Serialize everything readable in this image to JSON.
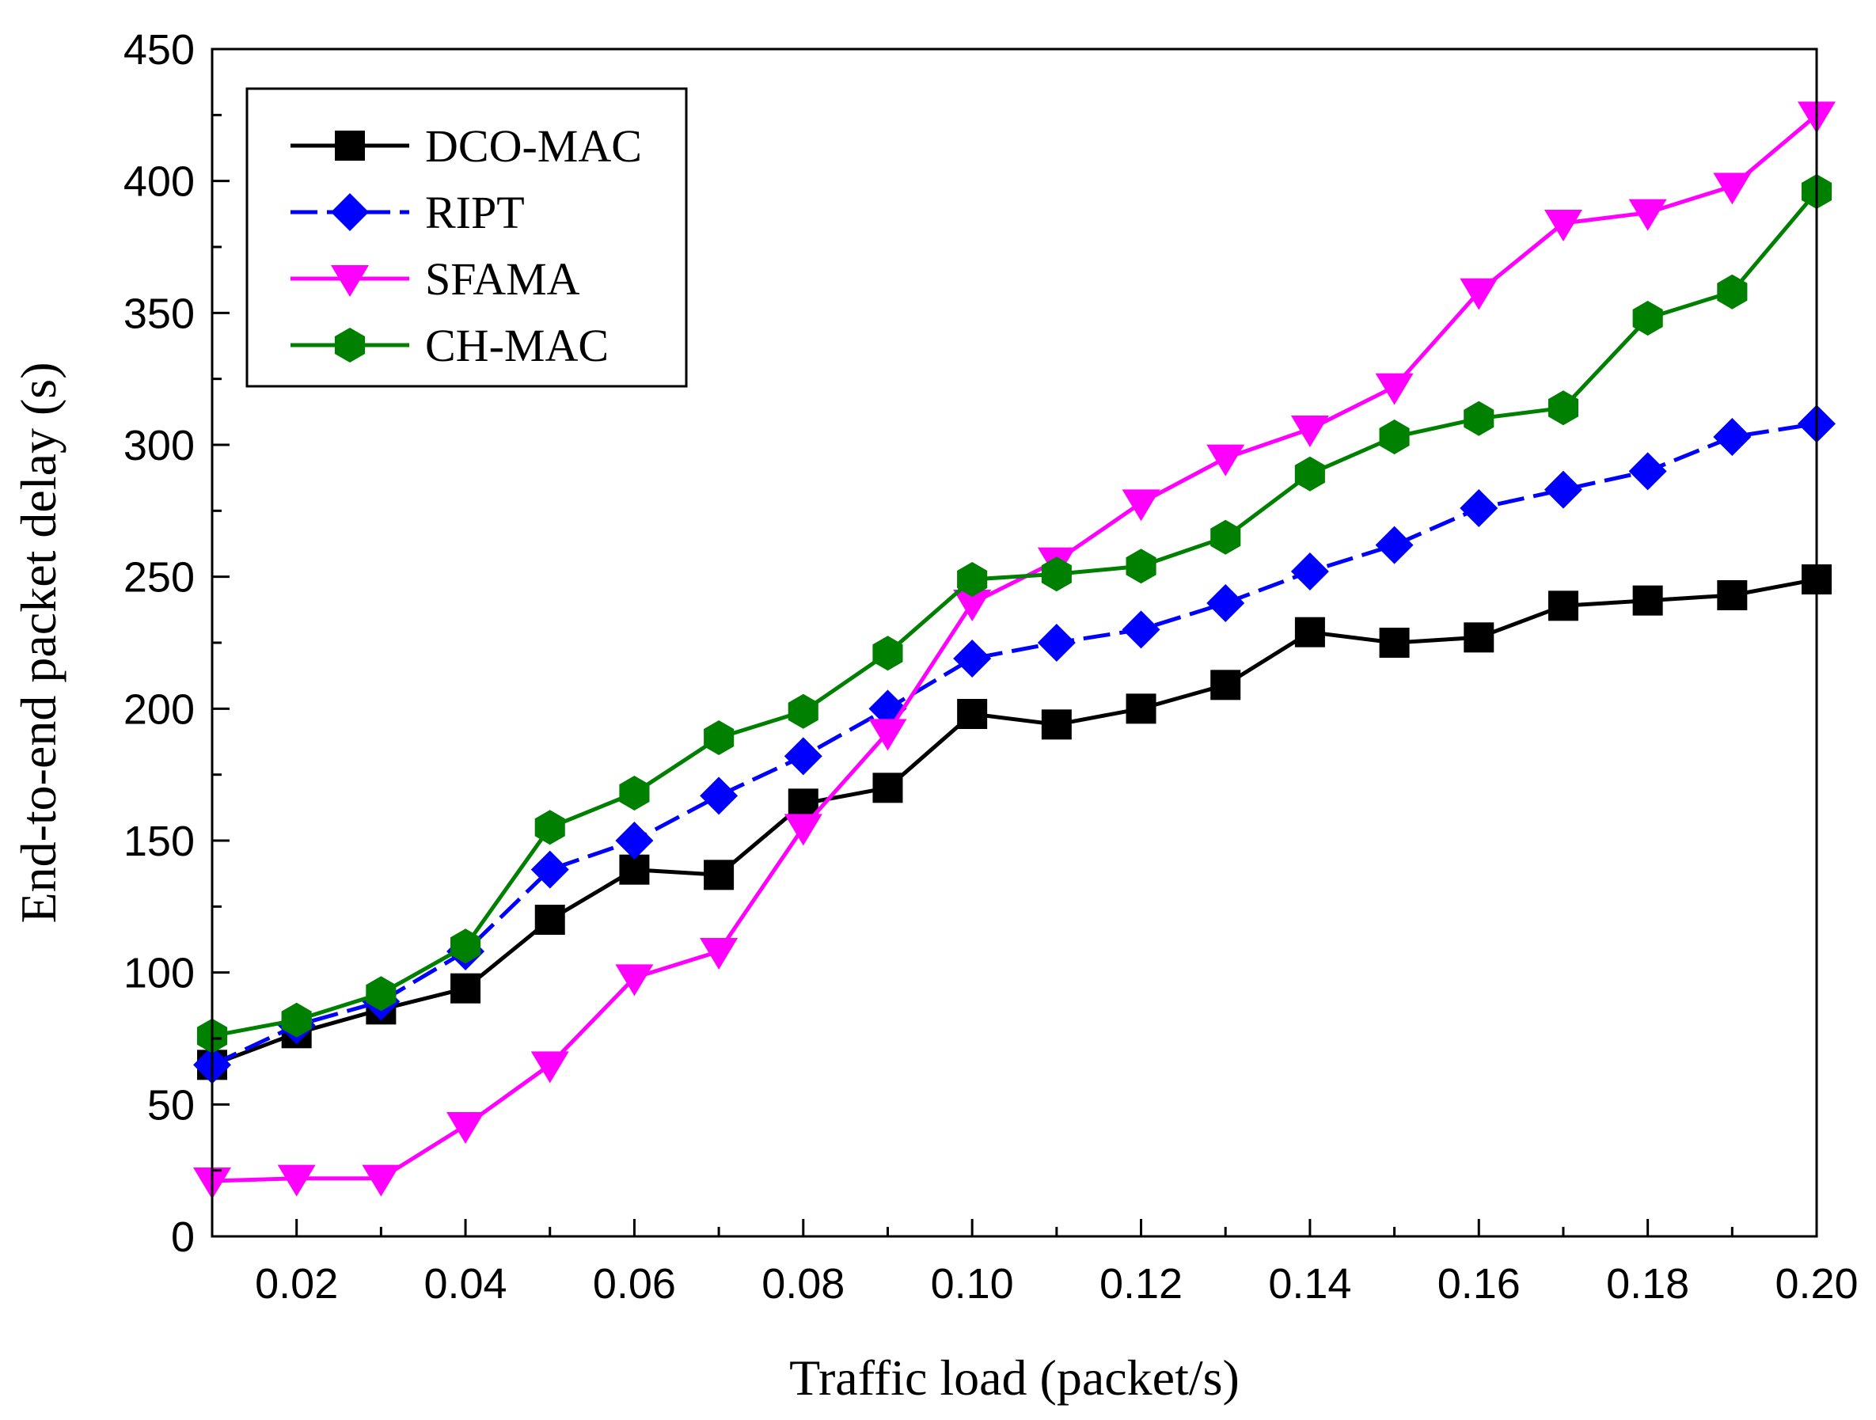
{
  "chart_data": {
    "type": "line",
    "title": "",
    "xlabel": "Traffic load (packet/s)",
    "ylabel": "End-to-end packet delay (s)",
    "xlim": [
      0.01,
      0.2
    ],
    "ylim": [
      0,
      450
    ],
    "xticks": [
      "0.02",
      "0.04",
      "0.06",
      "0.08",
      "0.10",
      "0.12",
      "0.14",
      "0.16",
      "0.18",
      "0.20"
    ],
    "xtick_values": [
      0.02,
      0.04,
      0.06,
      0.08,
      0.1,
      0.12,
      0.14,
      0.16,
      0.18,
      0.2
    ],
    "yticks": [
      "0",
      "50",
      "100",
      "150",
      "200",
      "250",
      "300",
      "350",
      "400",
      "450"
    ],
    "ytick_values": [
      0,
      50,
      100,
      150,
      200,
      250,
      300,
      350,
      400,
      450
    ],
    "legend_position": "top-left",
    "x": [
      0.01,
      0.02,
      0.03,
      0.04,
      0.05,
      0.06,
      0.07,
      0.08,
      0.09,
      0.1,
      0.11,
      0.12,
      0.13,
      0.14,
      0.15,
      0.16,
      0.17,
      0.18,
      0.19,
      0.2
    ],
    "series": [
      {
        "name": "DCO-MAC",
        "color": "#000000",
        "marker": "square",
        "dashed": false,
        "values": [
          65,
          77,
          86,
          94,
          120,
          139,
          137,
          164,
          170,
          198,
          194,
          200,
          209,
          229,
          225,
          227,
          239,
          241,
          243,
          249
        ]
      },
      {
        "name": "RIPT",
        "color": "#0000ff",
        "marker": "diamond",
        "dashed": true,
        "values": [
          65,
          80,
          89,
          108,
          139,
          150,
          167,
          182,
          200,
          219,
          225,
          230,
          240,
          252,
          262,
          276,
          283,
          290,
          303,
          308
        ]
      },
      {
        "name": "SFAMA",
        "color": "#ff00ff",
        "marker": "triangle-down",
        "dashed": false,
        "values": [
          21,
          22,
          22,
          42,
          65,
          98,
          108,
          155,
          191,
          240,
          256,
          278,
          295,
          306,
          322,
          358,
          384,
          388,
          398,
          425
        ]
      },
      {
        "name": "CH-MAC",
        "color": "#008000",
        "marker": "hexagon",
        "dashed": false,
        "values": [
          76,
          82,
          92,
          110,
          155,
          168,
          189,
          199,
          221,
          249,
          251,
          254,
          265,
          289,
          303,
          310,
          314,
          348,
          358,
          396
        ]
      }
    ]
  }
}
